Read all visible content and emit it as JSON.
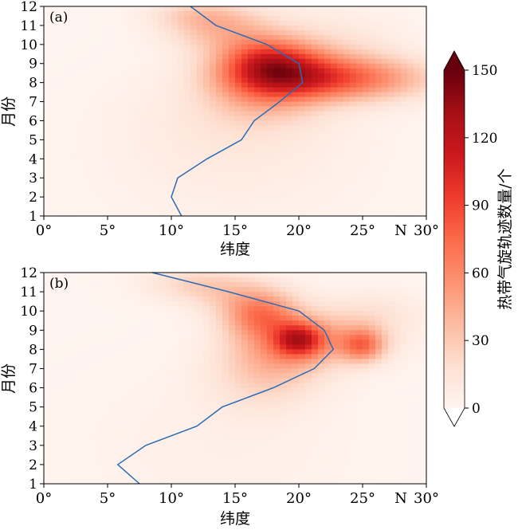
{
  "chart_data": [
    {
      "type": "heatmap",
      "panel_label": "(a)",
      "xlabel": "纬度",
      "ylabel": "月份",
      "x_ticks": [
        "0°",
        "5°",
        "10°",
        "15°",
        "20°",
        "25°",
        "30°"
      ],
      "x_tick_values": [
        0,
        5,
        10,
        15,
        20,
        25,
        30
      ],
      "x_extra_label": "N",
      "y_ticks": [
        1,
        2,
        3,
        4,
        5,
        6,
        7,
        8,
        9,
        10,
        11,
        12
      ],
      "xlim": [
        0,
        30
      ],
      "ylim": [
        1,
        12
      ],
      "blobs": [
        {
          "lat": 18,
          "month": 8.3,
          "sigma_lat": 3.2,
          "sigma_month": 0.9,
          "count": 75
        },
        {
          "lat": 17.5,
          "month": 9.3,
          "sigma_lat": 2.6,
          "sigma_month": 0.8,
          "count": 55
        },
        {
          "lat": 24,
          "month": 8.2,
          "sigma_lat": 4.5,
          "sigma_month": 0.8,
          "count": 60
        },
        {
          "lat": 14,
          "month": 10.8,
          "sigma_lat": 3.0,
          "sigma_month": 0.8,
          "count": 35
        },
        {
          "lat": 12,
          "month": 11.6,
          "sigma_lat": 2.5,
          "sigma_month": 0.5,
          "count": 20
        },
        {
          "lat": 17,
          "month": 6.8,
          "sigma_lat": 3.0,
          "sigma_month": 0.9,
          "count": 18
        },
        {
          "lat": 22,
          "month": 9.5,
          "sigma_lat": 4.0,
          "sigma_month": 1.5,
          "count": 18
        },
        {
          "lat": 15,
          "month": 6.0,
          "sigma_lat": 6.0,
          "sigma_month": 2.0,
          "count": 10
        },
        {
          "lat": 15,
          "month": 3.0,
          "sigma_lat": 8.0,
          "sigma_month": 3.0,
          "count": 5
        }
      ],
      "mean_latitude_line": {
        "color": "#2b6db4",
        "points": [
          [
            10.8,
            1
          ],
          [
            10.0,
            2
          ],
          [
            10.5,
            3
          ],
          [
            12.8,
            4
          ],
          [
            15.5,
            5
          ],
          [
            16.5,
            6
          ],
          [
            18.5,
            7
          ],
          [
            20.3,
            8
          ],
          [
            20.0,
            9
          ],
          [
            17.5,
            10
          ],
          [
            13.5,
            11
          ],
          [
            11.5,
            12
          ]
        ]
      }
    },
    {
      "type": "heatmap",
      "panel_label": "(b)",
      "xlabel": "纬度",
      "ylabel": "月份",
      "x_ticks": [
        "0°",
        "5°",
        "10°",
        "15°",
        "20°",
        "25°",
        "30°"
      ],
      "x_tick_values": [
        0,
        5,
        10,
        15,
        20,
        25,
        30
      ],
      "x_extra_label": "N",
      "y_ticks": [
        1,
        2,
        3,
        4,
        5,
        6,
        7,
        8,
        9,
        10,
        11,
        12
      ],
      "xlim": [
        0,
        30
      ],
      "ylim": [
        1,
        12
      ],
      "blobs": [
        {
          "lat": 20,
          "month": 8.5,
          "sigma_lat": 1.3,
          "sigma_month": 0.6,
          "count": 70
        },
        {
          "lat": 17,
          "month": 9.8,
          "sigma_lat": 2.0,
          "sigma_month": 0.8,
          "count": 55
        },
        {
          "lat": 25,
          "month": 8.2,
          "sigma_lat": 1.2,
          "sigma_month": 0.6,
          "count": 55
        },
        {
          "lat": 18.5,
          "month": 8.0,
          "sigma_lat": 3.0,
          "sigma_month": 1.2,
          "count": 40
        },
        {
          "lat": 22.5,
          "month": 8.6,
          "sigma_lat": 3.5,
          "sigma_month": 0.9,
          "count": 30
        },
        {
          "lat": 12,
          "month": 11.5,
          "sigma_lat": 3.0,
          "sigma_month": 0.6,
          "count": 20
        },
        {
          "lat": 15,
          "month": 10.8,
          "sigma_lat": 3.0,
          "sigma_month": 0.7,
          "count": 20
        },
        {
          "lat": 17,
          "month": 6.2,
          "sigma_lat": 3.0,
          "sigma_month": 1.2,
          "count": 15
        },
        {
          "lat": 26,
          "month": 10.0,
          "sigma_lat": 3.0,
          "sigma_month": 0.8,
          "count": 12
        },
        {
          "lat": 14,
          "month": 3.0,
          "sigma_lat": 8.0,
          "sigma_month": 3.0,
          "count": 5
        }
      ],
      "mean_latitude_line": {
        "color": "#2b6db4",
        "points": [
          [
            7.5,
            1
          ],
          [
            5.8,
            2
          ],
          [
            8.0,
            3
          ],
          [
            12.0,
            4
          ],
          [
            14.0,
            5
          ],
          [
            18.0,
            6
          ],
          [
            21.2,
            7
          ],
          [
            22.7,
            8
          ],
          [
            22.0,
            9
          ],
          [
            20.0,
            10
          ],
          [
            14.5,
            11
          ],
          [
            8.5,
            12
          ]
        ]
      }
    }
  ],
  "colorbar": {
    "label": "热带气旋轨迹数量/个",
    "min": 0,
    "max": 150,
    "ticks": [
      0,
      30,
      60,
      90,
      120,
      150
    ],
    "colors": [
      "#fff5f0",
      "#fee0d2",
      "#fcbba1",
      "#fc9272",
      "#fb6a4a",
      "#ef3b2c",
      "#cb181d",
      "#a50f15",
      "#67000d"
    ]
  }
}
